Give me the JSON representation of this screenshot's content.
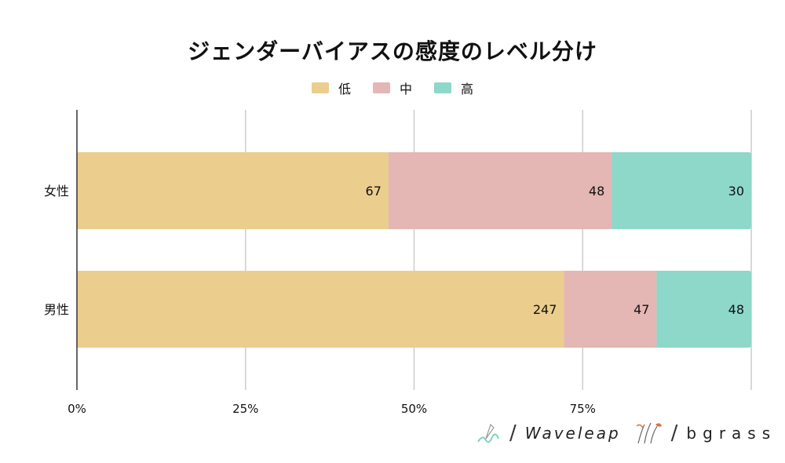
{
  "chart_data": {
    "type": "bar",
    "orientation": "horizontal",
    "stacked": "percent",
    "title": "ジェンダーバイアスの感度のレベル分け",
    "categories": [
      "女性",
      "男性"
    ],
    "series": [
      {
        "name": "低",
        "values": [
          67,
          247
        ],
        "color": "#ebcd8e"
      },
      {
        "name": "中",
        "values": [
          48,
          47
        ],
        "color": "#e4b6b4"
      },
      {
        "name": "高",
        "values": [
          30,
          48
        ],
        "color": "#8dd8c9"
      }
    ],
    "x_ticks": [
      "0%",
      "25%",
      "50%",
      "75%"
    ],
    "xlim": [
      0,
      100
    ],
    "grid": true,
    "legend_position": "top"
  },
  "logos": {
    "waveleap": "Waveleap",
    "bgrass": "bgrass"
  }
}
